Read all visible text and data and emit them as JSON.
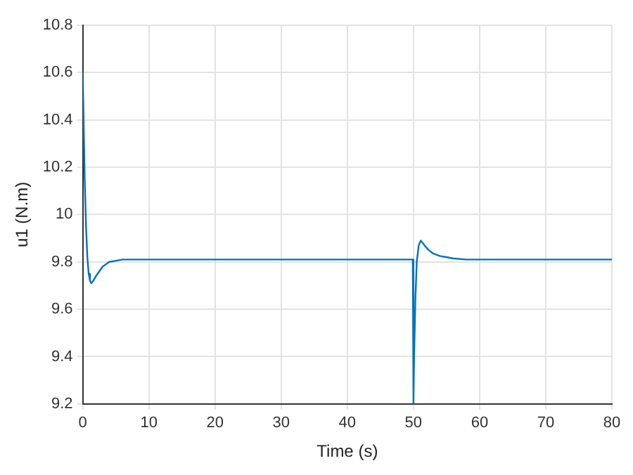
{
  "chart_data": {
    "type": "line",
    "xlabel": "Time (s)",
    "ylabel": "u1 (N.m)",
    "xlim": [
      0,
      80
    ],
    "xticks": [
      0,
      10,
      20,
      30,
      40,
      50,
      60,
      70,
      80
    ],
    "ylim": [
      9.2,
      10.8
    ],
    "yticks": [
      9.2,
      9.4,
      9.6,
      9.8,
      10,
      10.2,
      10.4,
      10.6,
      10.8
    ],
    "grid": true,
    "legend": false,
    "marker": "none",
    "line_style": "solid",
    "series": [
      {
        "color": "#0072bd",
        "x": [
          0,
          0.1,
          0.3,
          0.5,
          0.7,
          0.9,
          1.1,
          1.3,
          1.6,
          2,
          2.5,
          3,
          3.5,
          4,
          5,
          6,
          7,
          8,
          10,
          20,
          30,
          40,
          49.9,
          50,
          50.1,
          50.3,
          50.5,
          50.8,
          51.1,
          51.4,
          51.8,
          52.3,
          53,
          54,
          55,
          56,
          58,
          60,
          70,
          80
        ],
        "values": [
          10.6,
          10.45,
          10.15,
          9.95,
          9.82,
          9.75,
          9.72,
          9.71,
          9.72,
          9.74,
          9.76,
          9.78,
          9.79,
          9.8,
          9.805,
          9.81,
          9.81,
          9.81,
          9.81,
          9.81,
          9.81,
          9.81,
          9.81,
          9.2,
          9.4,
          9.65,
          9.8,
          9.87,
          9.89,
          9.88,
          9.865,
          9.85,
          9.835,
          9.825,
          9.82,
          9.815,
          9.81,
          9.81,
          9.81,
          9.81
        ]
      }
    ]
  }
}
